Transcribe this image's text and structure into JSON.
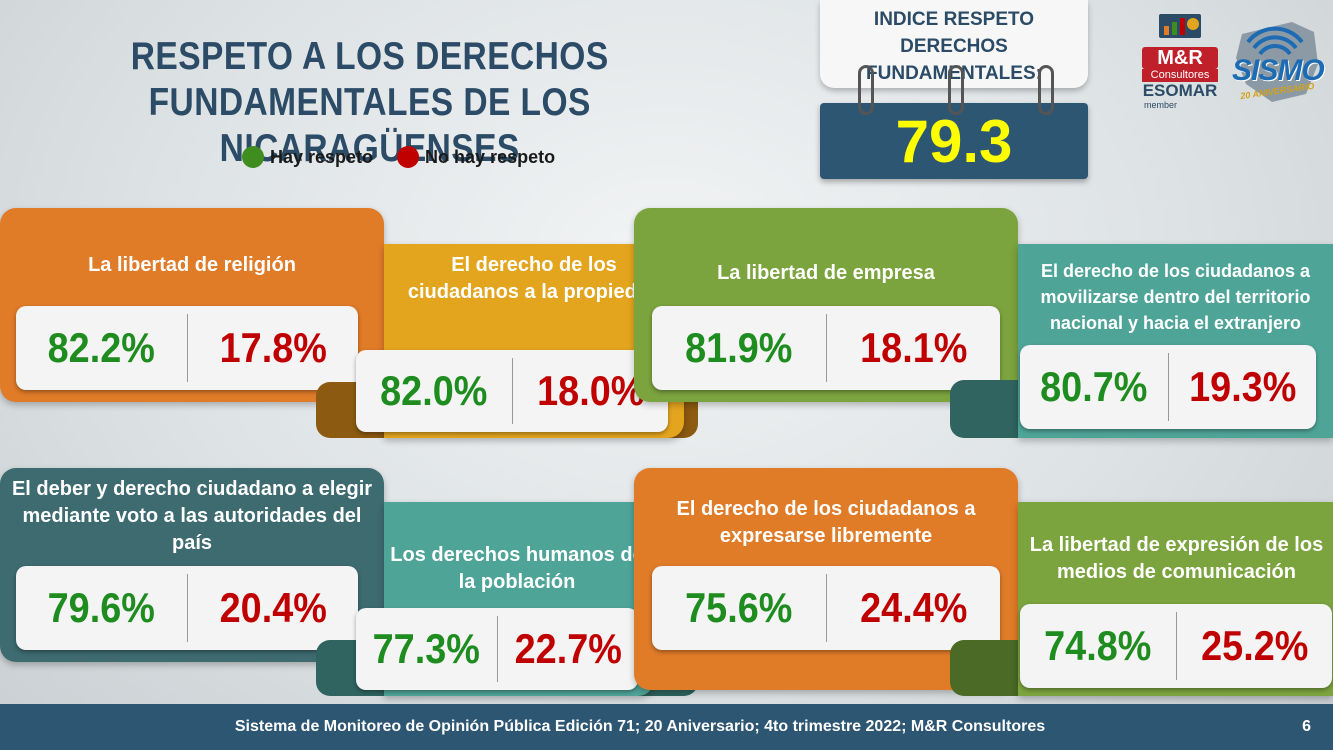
{
  "title_line1": "RESPETO A LOS DERECHOS",
  "title_line2": "FUNDAMENTALES DE LOS NICARAGÜENSES",
  "legend": [
    {
      "label": "Hay respeto",
      "color": "#3f8c1f"
    },
    {
      "label": "No hay respeto",
      "color": "#c00000"
    }
  ],
  "index": {
    "label_line1": "INDICE RESPETO DERECHOS",
    "label_line2": "FUNDAMENTALES:",
    "value": "79.3"
  },
  "logos": {
    "mr_name": "M&R",
    "mr_sub": "Consultores",
    "mr_esomar": "ESOMAR",
    "mr_member": "member",
    "sismo": "SISMO",
    "sismo_sub": "20 ANIVERSARIO"
  },
  "cards": [
    {
      "label": "La libertad de religión",
      "yes": "82.2%",
      "no": "17.8%",
      "color": "#e07b28"
    },
    {
      "label": "El derecho de los ciudadanos a la propiedad",
      "yes": "82.0%",
      "no": "18.0%",
      "color": "#e3a51e"
    },
    {
      "label": "La libertad de empresa",
      "yes": "81.9%",
      "no": "18.1%",
      "color": "#7ba33e"
    },
    {
      "label": "El derecho de los ciudadanos a movilizarse dentro del territorio nacional y hacia el extranjero",
      "yes": "80.7%",
      "no": "19.3%",
      "color": "#4fa498"
    },
    {
      "label": "El deber y derecho ciudadano a elegir mediante voto a las autoridades del país",
      "yes": "79.6%",
      "no": "20.4%",
      "color": "#3d6b70"
    },
    {
      "label": "Los derechos humanos de la población",
      "yes": "77.3%",
      "no": "22.7%",
      "color": "#4fa498"
    },
    {
      "label": "El derecho de los  ciudadanos a expresarse libremente",
      "yes": "75.6%",
      "no": "24.4%",
      "color": "#e07b28"
    },
    {
      "label": "La libertad de expresión de los medios de comunicación",
      "yes": "74.8%",
      "no": "25.2%",
      "color": "#7ba33e"
    }
  ],
  "footer": {
    "text": "Sistema de Monitoreo de Opinión Pública Edición 71; 20 Aniversario; 4to trimestre 2022; M&R Consultores",
    "page": "6"
  }
}
